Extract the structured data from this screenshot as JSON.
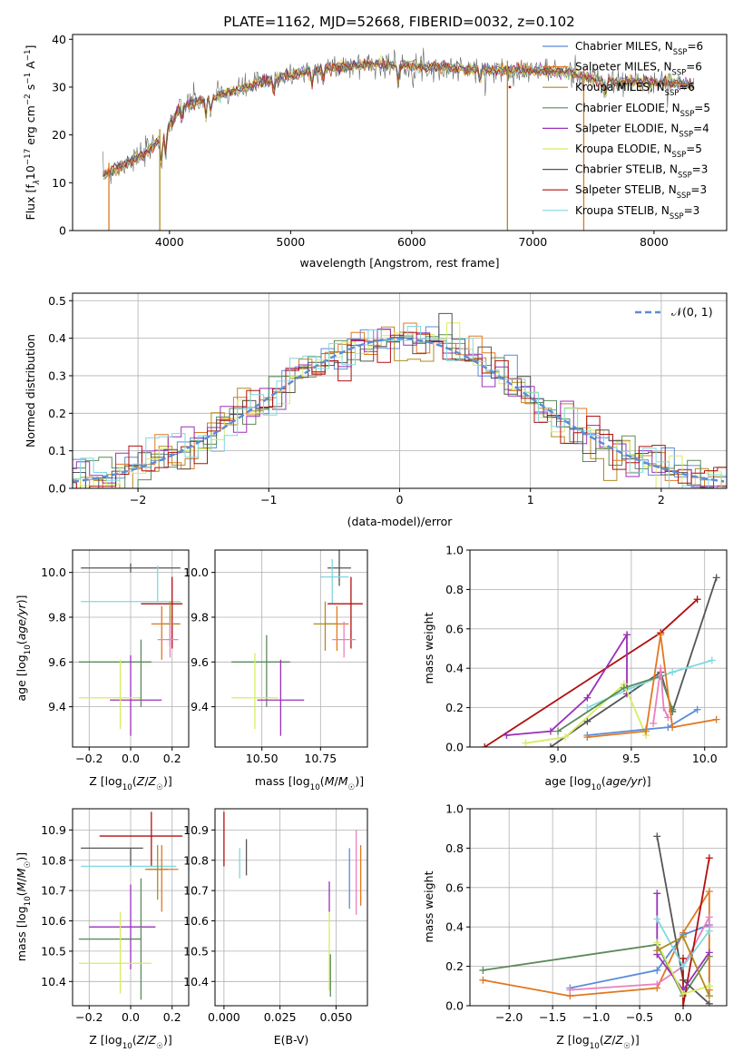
{
  "figure_title": "PLATE=1162, MJD=52668, FIBERID=0032, z=0.102",
  "colors": {
    "chab_miles": "#5b8bd9",
    "salp_miles": "#e07820",
    "krou_miles": "#b08a20",
    "chab_elodie": "#5a8a5a",
    "salp_elodie": "#9a30b8",
    "krou_elodie": "#d8ec60",
    "chab_stelib": "#555555",
    "salp_stelib": "#b01010",
    "krou_stelib": "#80d8e0",
    "pink": "#e880c0",
    "gray2": "#888888",
    "grid": "#b0b0b0"
  },
  "chart_data": [
    {
      "id": "spectrum",
      "type": "line",
      "title": "PLATE=1162, MJD=52668, FIBERID=0032, z=0.102",
      "xlabel": "wavelength [Angstrom, rest frame]",
      "ylabel_parts": [
        "Flux [f",
        "λ",
        "10",
        "−17",
        " erg cm",
        "−2",
        " s",
        "−1",
        " A",
        "−1",
        "]"
      ],
      "xlim": [
        3200,
        8600
      ],
      "ylim": [
        0,
        41
      ],
      "xticks": [
        4000,
        5000,
        6000,
        7000,
        8000
      ],
      "yticks": [
        0,
        10,
        20,
        30,
        40
      ],
      "grid": false,
      "legend_position": "right",
      "continuum_x": [
        3450,
        3600,
        3800,
        3950,
        4100,
        4300,
        4500,
        4700,
        4900,
        5100,
        5300,
        5500,
        5700,
        5900,
        6100,
        6300,
        6500,
        6700,
        6900,
        7100,
        7300,
        7500,
        7700,
        7900,
        8100,
        8300
      ],
      "continuum_y": [
        11.5,
        13.5,
        16,
        20,
        26,
        27.5,
        29,
        30.5,
        32,
        33,
        34,
        34.5,
        34.8,
        34.6,
        34.2,
        34,
        33.8,
        33.5,
        33.6,
        33.4,
        33,
        31.5,
        31,
        31,
        31,
        30.5
      ],
      "drops_x": [
        3500,
        3920,
        6790,
        7420
      ],
      "series": [
        {
          "name": "Chabrier MILES",
          "n_ssp": 6
        },
        {
          "name": "Salpeter MILES",
          "n_ssp": 6
        },
        {
          "name": "Kroupa MILES",
          "n_ssp": 6
        },
        {
          "name": "Chabrier ELODIE",
          "n_ssp": 5
        },
        {
          "name": "Salpeter ELODIE",
          "n_ssp": 4
        },
        {
          "name": "Kroupa ELODIE",
          "n_ssp": 5
        },
        {
          "name": "Chabrier STELIB",
          "n_ssp": 3
        },
        {
          "name": "Salpeter STELIB",
          "n_ssp": 3
        },
        {
          "name": "Kroupa STELIB",
          "n_ssp": 3
        }
      ],
      "legend_n_label": "N",
      "legend_n_sub": "SSP"
    },
    {
      "id": "residuals",
      "type": "histogram",
      "xlabel": "(data-model)/error",
      "ylabel": "Normed distribution",
      "xlim": [
        -2.5,
        2.5
      ],
      "ylim": [
        0,
        0.52
      ],
      "xticks": [
        -2,
        -1,
        0,
        1,
        2
      ],
      "yticks": [
        0.0,
        0.1,
        0.2,
        0.3,
        0.4,
        0.5
      ],
      "grid": true,
      "legend_position": "top-right",
      "legend_label": "𝒩(0, 1)",
      "bin_width": 0.1,
      "normal": {
        "mean": 0,
        "sigma": 1
      }
    },
    {
      "id": "age_vs_Z",
      "type": "errorbar",
      "xlabel": "Z [log10(Z/Z☉)]",
      "ylabel": "age [log10(age/yr)]",
      "xlim": [
        -0.28,
        0.28
      ],
      "ylim": [
        9.22,
        10.1
      ],
      "xticks": [
        -0.2,
        0.0,
        0.2
      ],
      "yticks": [
        9.4,
        9.6,
        9.8,
        10.0
      ],
      "grid": true,
      "points": [
        {
          "s": "chab_stelib",
          "x": 0.0,
          "y": 10.02,
          "xerr": [
            0.24,
            0.24
          ],
          "yerr": [
            0.02,
            0.02
          ]
        },
        {
          "s": "krou_stelib",
          "x": 0.0,
          "y": 9.87,
          "xerr": [
            0.24,
            0.24
          ],
          "yerr": [
            0.0,
            0.0
          ]
        },
        {
          "s": "krou_stelib",
          "x": 0.13,
          "y": 9.95,
          "xerr": [
            0.0,
            0.0
          ],
          "yerr": [
            0.08,
            0.08
          ]
        },
        {
          "s": "salp_stelib",
          "x": 0.2,
          "y": 9.86,
          "xerr": [
            0.15,
            0.05
          ],
          "yerr": [
            0.2,
            0.12
          ]
        },
        {
          "s": "salp_miles",
          "x": 0.15,
          "y": 9.77,
          "xerr": [
            0.05,
            0.08
          ],
          "yerr": [
            0.16,
            0.08
          ]
        },
        {
          "s": "krou_miles",
          "x": 0.19,
          "y": 9.77,
          "xerr": [
            0.04,
            0.05
          ],
          "yerr": [
            0.1,
            0.1
          ]
        },
        {
          "s": "pink",
          "x": 0.19,
          "y": 9.7,
          "xerr": [
            0.06,
            0.04
          ],
          "yerr": [
            0.08,
            0.08
          ]
        },
        {
          "s": "chab_elodie",
          "x": -0.05,
          "y": 9.6,
          "xerr": [
            0.2,
            0.15
          ],
          "yerr": [
            0.0,
            0.0
          ]
        },
        {
          "s": "salp_elodie",
          "x": 0.0,
          "y": 9.43,
          "xerr": [
            0.1,
            0.15
          ],
          "yerr": [
            0.16,
            0.2
          ]
        },
        {
          "s": "krou_elodie",
          "x": -0.05,
          "y": 9.44,
          "xerr": [
            0.2,
            0.1
          ],
          "yerr": [
            0.14,
            0.17
          ]
        },
        {
          "s": "chab_elodie",
          "x": 0.05,
          "y": 9.6,
          "xerr": [
            0.0,
            0.0
          ],
          "yerr": [
            0.2,
            0.1
          ]
        }
      ]
    },
    {
      "id": "age_vs_mass",
      "type": "errorbar",
      "xlabel": "mass [log10(M/M☉)]",
      "xlim": [
        10.3,
        10.95
      ],
      "ylim": [
        9.22,
        10.1
      ],
      "xticks": [
        10.5,
        10.75
      ],
      "yticks": [
        9.4,
        9.6,
        9.8,
        10.0
      ],
      "grid": true,
      "points": [
        {
          "s": "chab_stelib",
          "x": 10.83,
          "y": 10.02,
          "xerr": [
            0.05,
            0.05
          ],
          "yerr": [
            0.08,
            0.08
          ]
        },
        {
          "s": "krou_stelib",
          "x": 10.8,
          "y": 9.98,
          "xerr": [
            0.05,
            0.07
          ],
          "yerr": [
            0.12,
            0.08
          ]
        },
        {
          "s": "salp_stelib",
          "x": 10.88,
          "y": 9.86,
          "xerr": [
            0.1,
            0.05
          ],
          "yerr": [
            0.2,
            0.12
          ]
        },
        {
          "s": "salp_miles",
          "x": 10.82,
          "y": 9.77,
          "xerr": [
            0.05,
            0.05
          ],
          "yerr": [
            0.12,
            0.08
          ]
        },
        {
          "s": "krou_miles",
          "x": 10.77,
          "y": 9.77,
          "xerr": [
            0.05,
            0.05
          ],
          "yerr": [
            0.12,
            0.1
          ]
        },
        {
          "s": "pink",
          "x": 10.85,
          "y": 9.7,
          "xerr": [
            0.05,
            0.05
          ],
          "yerr": [
            0.08,
            0.08
          ]
        },
        {
          "s": "chab_elodie",
          "x": 10.52,
          "y": 9.6,
          "xerr": [
            0.15,
            0.1
          ],
          "yerr": [
            0.2,
            0.12
          ]
        },
        {
          "s": "salp_elodie",
          "x": 10.58,
          "y": 9.43,
          "xerr": [
            0.1,
            0.1
          ],
          "yerr": [
            0.16,
            0.18
          ]
        },
        {
          "s": "krou_elodie",
          "x": 10.47,
          "y": 9.44,
          "xerr": [
            0.1,
            0.1
          ],
          "yerr": [
            0.14,
            0.2
          ]
        }
      ]
    },
    {
      "id": "weights_vs_age",
      "type": "line",
      "xlabel": "age [log10(age/yr)]",
      "ylabel": "mass weight",
      "xlim": [
        8.4,
        10.15
      ],
      "ylim": [
        0,
        1.0
      ],
      "xticks": [
        9.0,
        9.5,
        10.0
      ],
      "yticks": [
        0.0,
        0.2,
        0.4,
        0.6,
        0.8,
        1.0
      ],
      "grid": true,
      "series": [
        {
          "s": "salp_stelib",
          "x": [
            8.5,
            9.7,
            9.95
          ],
          "y": [
            0.0,
            0.58,
            0.75
          ]
        },
        {
          "s": "chab_stelib",
          "x": [
            8.95,
            9.2,
            9.7,
            9.78,
            10.08
          ],
          "y": [
            0.0,
            0.13,
            0.38,
            0.18,
            0.86
          ]
        },
        {
          "s": "krou_stelib",
          "x": [
            9.2,
            9.5,
            9.78,
            10.05
          ],
          "y": [
            0.2,
            0.3,
            0.38,
            0.44
          ]
        },
        {
          "s": "salp_elodie",
          "x": [
            8.65,
            8.95,
            9.2,
            9.47,
            9.47
          ],
          "y": [
            0.06,
            0.08,
            0.25,
            0.57,
            0.27
          ]
        },
        {
          "s": "krou_elodie",
          "x": [
            8.78,
            9.05,
            9.45,
            9.6
          ],
          "y": [
            0.02,
            0.05,
            0.32,
            0.06
          ]
        },
        {
          "s": "chab_elodie",
          "x": [
            9.0,
            9.45,
            9.7,
            9.78
          ],
          "y": [
            0.08,
            0.3,
            0.36,
            0.19
          ]
        },
        {
          "s": "chab_miles",
          "x": [
            9.2,
            9.6,
            9.75,
            9.95
          ],
          "y": [
            0.06,
            0.09,
            0.1,
            0.19
          ]
        },
        {
          "s": "salp_miles",
          "x": [
            9.2,
            9.6,
            9.7,
            9.78,
            10.08
          ],
          "y": [
            0.05,
            0.08,
            0.57,
            0.1,
            0.14
          ]
        },
        {
          "s": "pink",
          "x": [
            9.65,
            9.7,
            9.72,
            9.75
          ],
          "y": [
            0.12,
            0.4,
            0.2,
            0.15
          ]
        }
      ]
    },
    {
      "id": "mass_vs_Z",
      "type": "errorbar",
      "xlabel": "Z [log10(Z/Z☉)]",
      "ylabel": "mass [log10(M/M☉)]",
      "xlim": [
        -0.28,
        0.28
      ],
      "ylim": [
        10.32,
        10.97
      ],
      "xticks": [
        -0.2,
        0.0,
        0.2
      ],
      "yticks": [
        10.4,
        10.5,
        10.6,
        10.7,
        10.8,
        10.9
      ],
      "grid": true,
      "points": [
        {
          "s": "salp_stelib",
          "x": 0.1,
          "y": 10.88,
          "xerr": [
            0.25,
            0.15
          ],
          "yerr": [
            0.1,
            0.08
          ]
        },
        {
          "s": "chab_stelib",
          "x": 0.0,
          "y": 10.84,
          "xerr": [
            0.24,
            0.06
          ],
          "yerr": [
            0.06,
            0.0
          ]
        },
        {
          "s": "krou_stelib",
          "x": 0.0,
          "y": 10.78,
          "xerr": [
            0.24,
            0.22
          ],
          "yerr": [
            0.0,
            0.0
          ]
        },
        {
          "s": "salp_miles",
          "x": 0.15,
          "y": 10.77,
          "xerr": [
            0.08,
            0.08
          ],
          "yerr": [
            0.14,
            0.08
          ]
        },
        {
          "s": "krou_miles",
          "x": 0.13,
          "y": 10.77,
          "xerr": [
            0.05,
            0.05
          ],
          "yerr": [
            0.1,
            0.08
          ]
        },
        {
          "s": "salp_elodie",
          "x": 0.0,
          "y": 10.58,
          "xerr": [
            0.2,
            0.12
          ],
          "yerr": [
            0.14,
            0.14
          ]
        },
        {
          "s": "chab_elodie",
          "x": 0.05,
          "y": 10.54,
          "xerr": [
            0.3,
            0.0
          ],
          "yerr": [
            0.2,
            0.2
          ]
        },
        {
          "s": "krou_elodie",
          "x": -0.05,
          "y": 10.46,
          "xerr": [
            0.2,
            0.15
          ],
          "yerr": [
            0.1,
            0.17
          ]
        }
      ]
    },
    {
      "id": "mass_vs_ebv",
      "type": "errorbar",
      "xlabel": "E(B-V)",
      "xlim": [
        -0.004,
        0.064
      ],
      "ylim": [
        10.32,
        10.97
      ],
      "xticks": [
        0.0,
        0.025,
        0.05
      ],
      "xtick_labels": [
        "0.000",
        "0.025",
        "0.050"
      ],
      "yticks": [
        10.4,
        10.5,
        10.6,
        10.7,
        10.8,
        10.9
      ],
      "grid": true,
      "points": [
        {
          "s": "salp_stelib",
          "x": 0.0,
          "y": 10.87,
          "xerr": [
            0,
            0
          ],
          "yerr": [
            0.09,
            0.09
          ]
        },
        {
          "s": "chab_stelib",
          "x": 0.01,
          "y": 10.81,
          "xerr": [
            0,
            0
          ],
          "yerr": [
            0.06,
            0.06
          ]
        },
        {
          "s": "krou_stelib",
          "x": 0.007,
          "y": 10.79,
          "xerr": [
            0,
            0
          ],
          "yerr": [
            0.05,
            0.05
          ]
        },
        {
          "s": "salp_elodie",
          "x": 0.047,
          "y": 10.68,
          "xerr": [
            0,
            0
          ],
          "yerr": [
            0.05,
            0.05
          ]
        },
        {
          "s": "krou_elodie",
          "x": 0.047,
          "y": 10.5,
          "xerr": [
            0,
            0
          ],
          "yerr": [
            0.13,
            0.13
          ]
        },
        {
          "s": "chab_elodie",
          "x": 0.0475,
          "y": 10.42,
          "xerr": [
            0,
            0
          ],
          "yerr": [
            0.07,
            0.07
          ]
        },
        {
          "s": "chab_miles",
          "x": 0.056,
          "y": 10.74,
          "xerr": [
            0,
            0
          ],
          "yerr": [
            0.1,
            0.1
          ]
        },
        {
          "s": "salp_miles",
          "x": 0.061,
          "y": 10.75,
          "xerr": [
            0,
            0
          ],
          "yerr": [
            0.1,
            0.1
          ]
        },
        {
          "s": "pink",
          "x": 0.059,
          "y": 10.76,
          "xerr": [
            0,
            0
          ],
          "yerr": [
            0.14,
            0.14
          ]
        }
      ]
    },
    {
      "id": "weights_vs_Z",
      "type": "line",
      "xlabel": "Z [log10(Z/Z☉)]",
      "ylabel": "mass weight",
      "xlim": [
        -2.45,
        0.5
      ],
      "ylim": [
        0,
        1.0
      ],
      "xticks": [
        -2.0,
        -1.5,
        -1.0,
        -0.5,
        0.0
      ],
      "yticks": [
        0.0,
        0.2,
        0.4,
        0.6,
        0.8,
        1.0
      ],
      "grid": true,
      "series": [
        {
          "s": "chab_elodie",
          "x": [
            -2.3,
            -0.3,
            0.0,
            0.3,
            0.3
          ],
          "y": [
            0.18,
            0.31,
            0.05,
            0.25,
            0.05
          ]
        },
        {
          "s": "salp_miles",
          "x": [
            -2.3,
            -1.3,
            -0.3,
            0.0,
            0.3,
            0.3
          ],
          "y": [
            0.13,
            0.05,
            0.09,
            0.37,
            0.58,
            0.08
          ]
        },
        {
          "s": "chab_miles",
          "x": [
            -1.3,
            -0.3,
            0.0,
            0.3
          ],
          "y": [
            0.09,
            0.18,
            0.36,
            0.41
          ]
        },
        {
          "s": "pink",
          "x": [
            -1.3,
            -0.3,
            0.0,
            0.3,
            0.3
          ],
          "y": [
            0.08,
            0.11,
            0.2,
            0.45,
            0.4
          ]
        },
        {
          "s": "chab_stelib",
          "x": [
            -0.3,
            0.0,
            0.3
          ],
          "y": [
            0.86,
            0.13,
            0.01
          ]
        },
        {
          "s": "salp_stelib",
          "x": [
            0.0,
            0.0,
            0.3
          ],
          "y": [
            0.24,
            0.0,
            0.75
          ]
        },
        {
          "s": "salp_elodie",
          "x": [
            -0.3,
            -0.3,
            0.0,
            0.3
          ],
          "y": [
            0.57,
            0.26,
            0.08,
            0.27
          ]
        },
        {
          "s": "krou_stelib",
          "x": [
            -0.3,
            0.0,
            0.3
          ],
          "y": [
            0.44,
            0.2,
            0.38
          ]
        },
        {
          "s": "krou_elodie",
          "x": [
            -0.3,
            0.0,
            0.3
          ],
          "y": [
            0.32,
            0.06,
            0.1
          ]
        },
        {
          "s": "krou_miles",
          "x": [
            -0.3,
            0.0,
            0.3
          ],
          "y": [
            0.28,
            0.35,
            0.05
          ]
        }
      ]
    }
  ]
}
